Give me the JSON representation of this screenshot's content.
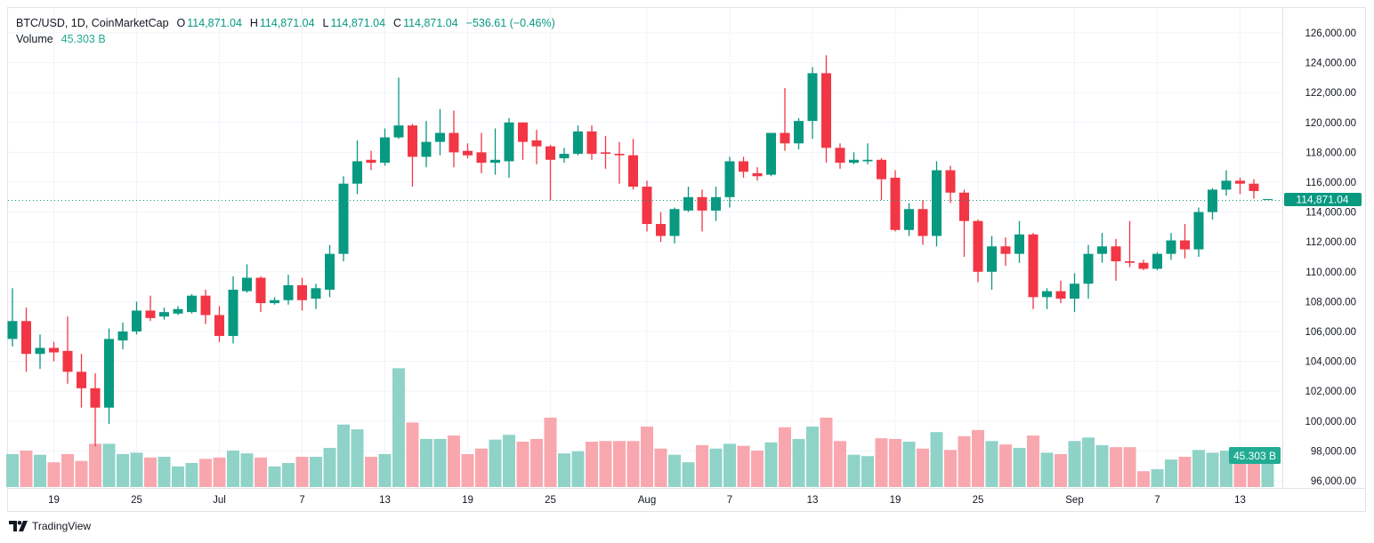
{
  "legend": {
    "symbol": "BTC/USD, 1D, CoinMarketCap",
    "o_label": "O",
    "o_value": "114,871.04",
    "h_label": "H",
    "h_value": "114,871.04",
    "l_label": "L",
    "l_value": "114,871.04",
    "c_label": "C",
    "c_value": "114,871.04",
    "change": "−536.61 (−0.46%)",
    "volume_label": "Volume",
    "volume_value": "45.303 B"
  },
  "last_price_badge": "114,871.04",
  "volume_badge": "45.303 B",
  "branding": "TradingView",
  "colors": {
    "up": "#089981",
    "down": "#F23645",
    "up_volume": "#8fd3c8",
    "down_volume": "#f9a7af",
    "grid": "#f0f3fa"
  },
  "chart_data": {
    "type": "candlestick",
    "title": "BTC/USD, 1D, CoinMarketCap",
    "ylim": [
      96000,
      126000
    ],
    "y_ticks": [
      "96,000.00",
      "98,000.00",
      "100,000.00",
      "102,000.00",
      "104,000.00",
      "106,000.00",
      "108,000.00",
      "110,000.00",
      "112,000.00",
      "114,000.00",
      "116,000.00",
      "118,000.00",
      "120,000.00",
      "122,000.00",
      "124,000.00",
      "126,000.00"
    ],
    "x_ticks": [
      {
        "label": "19",
        "date": "Jun 19"
      },
      {
        "label": "25",
        "date": "Jun 25"
      },
      {
        "label": "Jul",
        "date": "Jul 1"
      },
      {
        "label": "7",
        "date": "Jul 7"
      },
      {
        "label": "13",
        "date": "Jul 13"
      },
      {
        "label": "19",
        "date": "Jul 19"
      },
      {
        "label": "25",
        "date": "Jul 25"
      },
      {
        "label": "Aug",
        "date": "Aug 1"
      },
      {
        "label": "7",
        "date": "Aug 7"
      },
      {
        "label": "13",
        "date": "Aug 13"
      },
      {
        "label": "19",
        "date": "Aug 19"
      },
      {
        "label": "25",
        "date": "Aug 25"
      },
      {
        "label": "Sep",
        "date": "Sep 1"
      },
      {
        "label": "7",
        "date": "Sep 7"
      },
      {
        "label": "13",
        "date": "Sep 13"
      }
    ],
    "grid": true,
    "volume_unit": "B",
    "columns": [
      "date",
      "open",
      "high",
      "low",
      "close",
      "volume"
    ],
    "candles": [
      [
        "Jun 16",
        105500,
        108900,
        105000,
        106700,
        48
      ],
      [
        "Jun 17",
        106700,
        107600,
        103300,
        104500,
        53
      ],
      [
        "Jun 18",
        104500,
        105800,
        103500,
        104900,
        47
      ],
      [
        "Jun 19",
        104900,
        105300,
        104000,
        104600,
        36
      ],
      [
        "Jun 20",
        104700,
        107000,
        102500,
        103300,
        48
      ],
      [
        "Jun 21",
        103300,
        104500,
        100900,
        102200,
        38
      ],
      [
        "Jun 22",
        102200,
        103200,
        98300,
        100900,
        63
      ],
      [
        "Jun 23",
        100900,
        106200,
        99800,
        105500,
        63
      ],
      [
        "Jun 24",
        105400,
        106600,
        104800,
        106000,
        48
      ],
      [
        "Jun 25",
        106000,
        108000,
        105800,
        107400,
        50
      ],
      [
        "Jun 26",
        107400,
        108400,
        106700,
        106900,
        43
      ],
      [
        "Jun 27",
        107000,
        107600,
        106800,
        107300,
        44
      ],
      [
        "Jun 28",
        107200,
        107700,
        107100,
        107500,
        30
      ],
      [
        "Jun 29",
        107300,
        108500,
        107200,
        108400,
        35
      ],
      [
        "Jun 30",
        108400,
        108800,
        106500,
        107100,
        41
      ],
      [
        "Jul 1",
        107100,
        107700,
        105300,
        105700,
        43
      ],
      [
        "Jul 2",
        105700,
        109700,
        105200,
        108800,
        53
      ],
      [
        "Jul 3",
        108700,
        110500,
        108600,
        109600,
        49
      ],
      [
        "Jul 4",
        109600,
        109700,
        107300,
        107900,
        43
      ],
      [
        "Jul 5",
        107900,
        108300,
        107800,
        108100,
        30
      ],
      [
        "Jul 6",
        108100,
        109800,
        107800,
        109100,
        35
      ],
      [
        "Jul 7",
        109100,
        109600,
        107400,
        108100,
        44
      ],
      [
        "Jul 8",
        108200,
        109200,
        107500,
        108900,
        44
      ],
      [
        "Jul 9",
        108800,
        111800,
        108300,
        111200,
        57
      ],
      [
        "Jul 10",
        111200,
        116400,
        110700,
        115900,
        91
      ],
      [
        "Jul 11",
        115900,
        118800,
        115200,
        117400,
        84
      ],
      [
        "Jul 12",
        117500,
        118100,
        116800,
        117300,
        44
      ],
      [
        "Jul 13",
        117300,
        119600,
        117100,
        119000,
        48
      ],
      [
        "Jul 14",
        119000,
        123000,
        118900,
        119800,
        173
      ],
      [
        "Jul 15",
        119800,
        119900,
        115700,
        117700,
        94
      ],
      [
        "Jul 16",
        117700,
        120100,
        117000,
        118700,
        70
      ],
      [
        "Jul 17",
        118700,
        120900,
        117800,
        119300,
        70
      ],
      [
        "Jul 18",
        119300,
        120800,
        117000,
        118000,
        75
      ],
      [
        "Jul 19",
        118100,
        118600,
        117600,
        117800,
        48
      ],
      [
        "Jul 20",
        118000,
        119300,
        116600,
        117300,
        56
      ],
      [
        "Jul 21",
        117300,
        119600,
        116500,
        117500,
        69
      ],
      [
        "Jul 22",
        117400,
        120300,
        116300,
        120000,
        76
      ],
      [
        "Jul 23",
        120000,
        120000,
        117500,
        118700,
        66
      ],
      [
        "Jul 24",
        118800,
        119500,
        117200,
        118400,
        70
      ],
      [
        "Jul 25",
        118400,
        118500,
        114800,
        117500,
        101
      ],
      [
        "Jul 26",
        117600,
        118300,
        117300,
        117900,
        49
      ],
      [
        "Jul 27",
        117900,
        119800,
        117800,
        119400,
        52
      ],
      [
        "Jul 28",
        119400,
        119800,
        117500,
        117900,
        66
      ],
      [
        "Jul 29",
        118000,
        119100,
        116900,
        117900,
        67
      ],
      [
        "Jul 30",
        117900,
        118700,
        115900,
        117800,
        67
      ],
      [
        "Jul 31",
        117800,
        118900,
        115500,
        115700,
        67
      ],
      [
        "Aug 1",
        115700,
        116100,
        112700,
        113200,
        88
      ],
      [
        "Aug 2",
        113200,
        114000,
        112000,
        112400,
        56
      ],
      [
        "Aug 3",
        112400,
        114300,
        111900,
        114200,
        47
      ],
      [
        "Aug 4",
        114100,
        115700,
        114000,
        115000,
        36
      ],
      [
        "Aug 5",
        115000,
        115500,
        112700,
        114100,
        61
      ],
      [
        "Aug 6",
        114100,
        115700,
        113400,
        115000,
        56
      ],
      [
        "Aug 7",
        115000,
        117700,
        114300,
        117400,
        63
      ],
      [
        "Aug 8",
        117400,
        117700,
        116300,
        116700,
        60
      ],
      [
        "Aug 9",
        116600,
        117000,
        116100,
        116400,
        53
      ],
      [
        "Aug 10",
        116500,
        119300,
        116400,
        119300,
        65
      ],
      [
        "Aug 11",
        119300,
        122300,
        118100,
        118600,
        87
      ],
      [
        "Aug 12",
        118600,
        120300,
        118200,
        120100,
        70
      ],
      [
        "Aug 13",
        120100,
        123700,
        118900,
        123300,
        88
      ],
      [
        "Aug 14",
        123300,
        124500,
        117300,
        118300,
        101
      ],
      [
        "Aug 15",
        118300,
        118600,
        116900,
        117300,
        67
      ],
      [
        "Aug 16",
        117300,
        118000,
        117200,
        117500,
        47
      ],
      [
        "Aug 17",
        117400,
        118600,
        117200,
        117500,
        45
      ],
      [
        "Aug 18",
        117500,
        117600,
        114800,
        116200,
        71
      ],
      [
        "Aug 19",
        116300,
        116800,
        112700,
        112800,
        70
      ],
      [
        "Aug 20",
        112800,
        114600,
        112400,
        114200,
        66
      ],
      [
        "Aug 21",
        114200,
        114800,
        111800,
        112400,
        56
      ],
      [
        "Aug 22",
        112400,
        117400,
        111700,
        116800,
        80
      ],
      [
        "Aug 23",
        116800,
        117100,
        114600,
        115300,
        54
      ],
      [
        "Aug 24",
        115300,
        115500,
        111000,
        113400,
        74
      ],
      [
        "Aug 25",
        113400,
        113500,
        109300,
        110000,
        83
      ],
      [
        "Aug 26",
        110000,
        112400,
        108800,
        111700,
        67
      ],
      [
        "Aug 27",
        111700,
        112300,
        110400,
        111200,
        62
      ],
      [
        "Aug 28",
        111200,
        113400,
        110600,
        112500,
        57
      ],
      [
        "Aug 29",
        112500,
        112600,
        107500,
        108300,
        75
      ],
      [
        "Aug 30",
        108300,
        108900,
        107500,
        108700,
        50
      ],
      [
        "Aug 31",
        108700,
        109400,
        107900,
        108200,
        48
      ],
      [
        "Sep 1",
        108200,
        109900,
        107300,
        109200,
        67
      ],
      [
        "Sep 2",
        109200,
        111800,
        108200,
        111200,
        72
      ],
      [
        "Sep 3",
        111200,
        112600,
        110600,
        111700,
        61
      ],
      [
        "Sep 4",
        111700,
        112200,
        109400,
        110700,
        58
      ],
      [
        "Sep 5",
        110700,
        113400,
        110300,
        110600,
        58
      ],
      [
        "Sep 6",
        110600,
        110800,
        110100,
        110200,
        23
      ],
      [
        "Sep 7",
        110200,
        111300,
        110100,
        111200,
        26
      ],
      [
        "Sep 8",
        111200,
        112600,
        110800,
        112100,
        40
      ],
      [
        "Sep 9",
        112100,
        113200,
        110900,
        111500,
        44
      ],
      [
        "Sep 10",
        111500,
        114300,
        111000,
        114000,
        54
      ],
      [
        "Sep 11",
        114000,
        115600,
        113500,
        115500,
        50
      ],
      [
        "Sep 12",
        115500,
        116800,
        115100,
        116100,
        53
      ],
      [
        "Sep 13",
        116100,
        116300,
        115200,
        115900,
        35
      ],
      [
        "Sep 14",
        115900,
        116200,
        114900,
        115407.65,
        34
      ],
      [
        "Sep 15",
        114871.04,
        114871.04,
        114871.04,
        114871.04,
        45.303
      ]
    ]
  }
}
